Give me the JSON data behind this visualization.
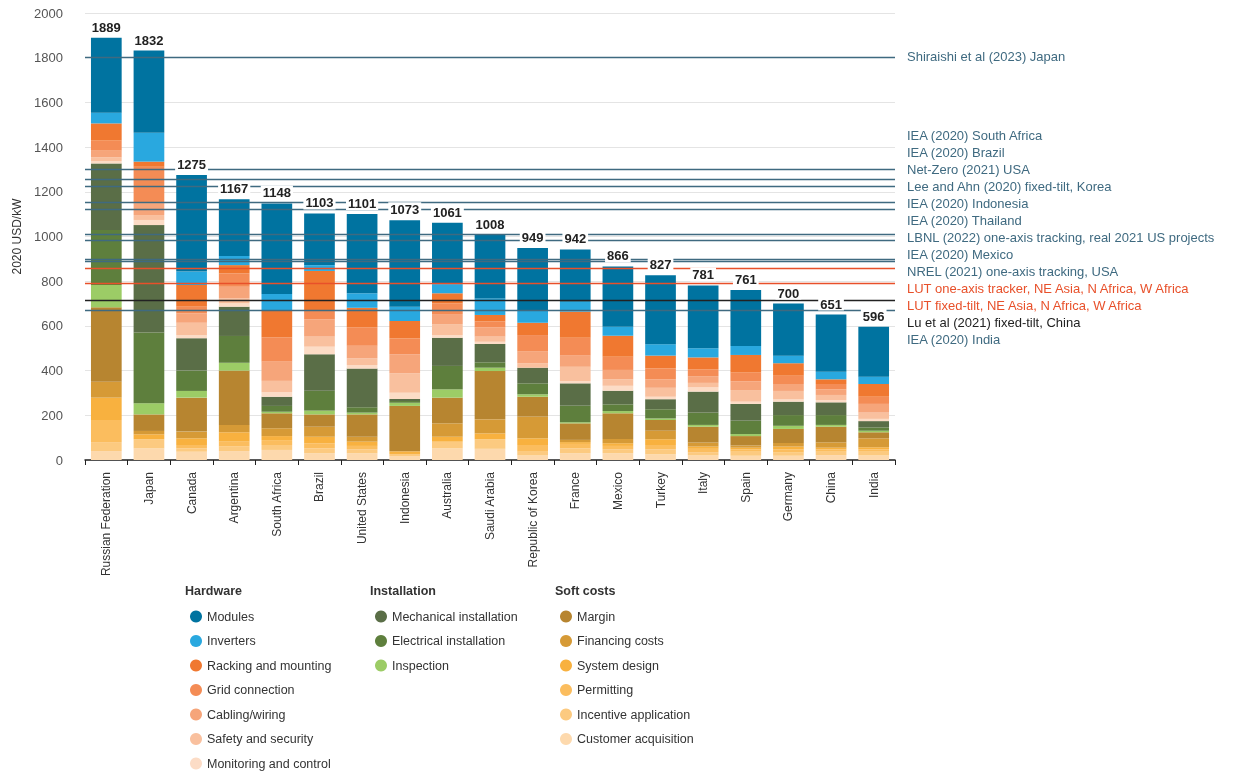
{
  "chart_data": {
    "type": "bar",
    "stacked": true,
    "ylabel": "2020 USD/kW",
    "categories": [
      "Russian Federation",
      "Japan",
      "Canada",
      "Argentina",
      "South Africa",
      "Brazil",
      "United States",
      "Indonesia",
      "Australia",
      "Saudi Arabia",
      "Republic of Korea",
      "France",
      "Mexico",
      "Turkey",
      "Italy",
      "Spain",
      "Germany",
      "China",
      "India"
    ],
    "series": [
      {
        "name": "Customer acquisition",
        "color": "#fdd9ad",
        "values": [
          40,
          52,
          37,
          40,
          45,
          30,
          30,
          18,
          52,
          50,
          20,
          30,
          30,
          25,
          20,
          19,
          19,
          22,
          20
        ]
      },
      {
        "name": "Incentive application",
        "color": "#fcca80",
        "values": [
          40,
          41,
          15,
          20,
          22,
          22,
          18,
          9,
          30,
          43,
          17,
          22,
          18,
          23,
          15,
          18,
          14,
          15,
          17
        ]
      },
      {
        "name": "Permitting",
        "color": "#fbbd5e",
        "values": [
          99,
          0,
          15,
          22,
          22,
          23,
          15,
          0,
          0,
          0,
          30,
          20,
          15,
          19,
          15,
          11,
          15,
          10,
          10
        ]
      },
      {
        "name": "System design",
        "color": "#f8b13f",
        "values": [
          100,
          22,
          30,
          42,
          18,
          29,
          19,
          12,
          22,
          26,
          30,
          8,
          12,
          26,
          10,
          7,
          12,
          8,
          10
        ]
      },
      {
        "name": "Financing costs",
        "color": "#d69a36",
        "values": [
          71,
          15,
          30,
          33,
          35,
          45,
          22,
          0,
          60,
          63,
          97,
          10,
          19,
          38,
          18,
          10,
          16,
          24,
          40
        ]
      },
      {
        "name": "Margin",
        "color": "#b78530",
        "values": [
          333,
          74,
          152,
          243,
          67,
          55,
          100,
          203,
          115,
          216,
          89,
          74,
          115,
          48,
          71,
          42,
          63,
          70,
          27
        ]
      },
      {
        "name": "Inspection",
        "color": "#9ccc66",
        "values": [
          100,
          50,
          30,
          35,
          7,
          17,
          8,
          14,
          37,
          15,
          11,
          5,
          10,
          7,
          8,
          9,
          14,
          8,
          7
        ]
      },
      {
        "name": "Electrical installation",
        "color": "#5e7f3d",
        "values": [
          246,
          316,
          91,
          120,
          26,
          89,
          24,
          8,
          105,
          24,
          49,
          74,
          30,
          41,
          55,
          60,
          48,
          44,
          15
        ]
      },
      {
        "name": "Mechanical installation",
        "color": "#5a6e47",
        "values": [
          298,
          481,
          145,
          131,
          41,
          163,
          173,
          9,
          126,
          82,
          70,
          100,
          61,
          45,
          94,
          75,
          60,
          57,
          28
        ]
      },
      {
        "name": "Monitoring and control",
        "color": "#fcdcc6",
        "values": [
          10,
          23,
          14,
          15,
          20,
          34,
          16,
          28,
          12,
          10,
          0,
          10,
          22,
          11,
          19,
          10,
          10,
          10,
          10
        ]
      },
      {
        "name": "Safety and security",
        "color": "#f9c09e",
        "values": [
          17,
          22,
          55,
          22,
          51,
          45,
          30,
          87,
          49,
          23,
          20,
          64,
          29,
          40,
          20,
          52,
          38,
          23,
          28
        ]
      },
      {
        "name": "Cabling/wiring",
        "color": "#f6a57a",
        "values": [
          30,
          52,
          42,
          52,
          86,
          77,
          56,
          85,
          45,
          42,
          52,
          50,
          42,
          38,
          30,
          39,
          31,
          25,
          39
        ]
      },
      {
        "name": "Grid connection",
        "color": "#f48c55",
        "values": [
          45,
          164,
          30,
          60,
          109,
          42,
          83,
          71,
          47,
          26,
          74,
          80,
          59,
          49,
          31,
          39,
          37,
          24,
          32
        ]
      },
      {
        "name": "Racking and mounting",
        "color": "#f07830",
        "values": [
          77,
          23,
          97,
          37,
          119,
          175,
          87,
          78,
          46,
          29,
          55,
          117,
          94,
          57,
          53,
          79,
          56,
          21,
          57
        ]
      },
      {
        "name": "Inverters",
        "color": "#29a8df",
        "values": [
          48,
          129,
          60,
          41,
          75,
          26,
          65,
          64,
          41,
          74,
          53,
          44,
          40,
          51,
          41,
          40,
          34,
          34,
          33
        ]
      },
      {
        "name": "Modules",
        "color": "#0073a0",
        "values": [
          335,
          368,
          432,
          254,
          405,
          231,
          355,
          387,
          274,
          285,
          282,
          234,
          270,
          309,
          281,
          251,
          233,
          256,
          223
        ]
      }
    ],
    "totals": [
      "1889",
      "1832",
      "1275",
      "1167",
      "1148",
      "1103",
      "1101",
      "1073",
      "1061",
      "1008",
      "949",
      "942",
      "866",
      "827",
      "781",
      "761",
      "700",
      "651",
      "596"
    ],
    "ylim": [
      0,
      2000
    ],
    "yticks": [
      0,
      200,
      400,
      600,
      800,
      1000,
      1200,
      1400,
      1600,
      1800,
      2000
    ],
    "grid": "y",
    "legend": "bottom",
    "annotations": [
      "Hardware",
      "Installation",
      "Soft costs"
    ],
    "ref_lines": [
      {
        "axis": "y",
        "value": 1800,
        "label": "Shiraishi et al (2023) Japan",
        "color": "#3f6a80"
      },
      {
        "axis": "y",
        "value": 1300,
        "label": "IEA (2020) South Africa",
        "color": "#3f6a80"
      },
      {
        "axis": "y",
        "value": 1255,
        "label": "IEA (2020) Brazil",
        "color": "#3f6a80"
      },
      {
        "axis": "y",
        "value": 1225,
        "label": "Net-Zero (2021) USA",
        "color": "#3f6a80"
      },
      {
        "axis": "y",
        "value": 1155,
        "label": "Lee and Ahn (2020) fixed-tilt, Korea",
        "color": "#3f6a80"
      },
      {
        "axis": "y",
        "value": 1120,
        "label": "IEA (2020) Indonesia",
        "color": "#3f6a80"
      },
      {
        "axis": "y",
        "value": 1010,
        "label": "IEA (2020) Thailand",
        "color": "#3f6a80"
      },
      {
        "axis": "y",
        "value": 985,
        "label": "LBNL (2022) one-axis tracking, real 2021 US projects",
        "color": "#3f6a80"
      },
      {
        "axis": "y",
        "value": 900,
        "label": "IEA (2020) Mexico",
        "color": "#3f6a80"
      },
      {
        "axis": "y",
        "value": 890,
        "label": "NREL (2021) one-axis tracking, USA",
        "color": "#3f6a80"
      },
      {
        "axis": "y",
        "value": 860,
        "label": "LUT one-axis tracker, NE Asia, N Africa, W Africa",
        "color": "#e8502a"
      },
      {
        "axis": "y",
        "value": 790,
        "label": "LUT fixed-tilt, NE Asia, N Africa, W Africa",
        "color": "#e8502a"
      },
      {
        "axis": "y",
        "value": 715,
        "label": "Lu et al (2021) fixed-tilt, China",
        "color": "#222222"
      },
      {
        "axis": "y",
        "value": 670,
        "label": "IEA (2020) India",
        "color": "#3f6a80"
      }
    ]
  }
}
